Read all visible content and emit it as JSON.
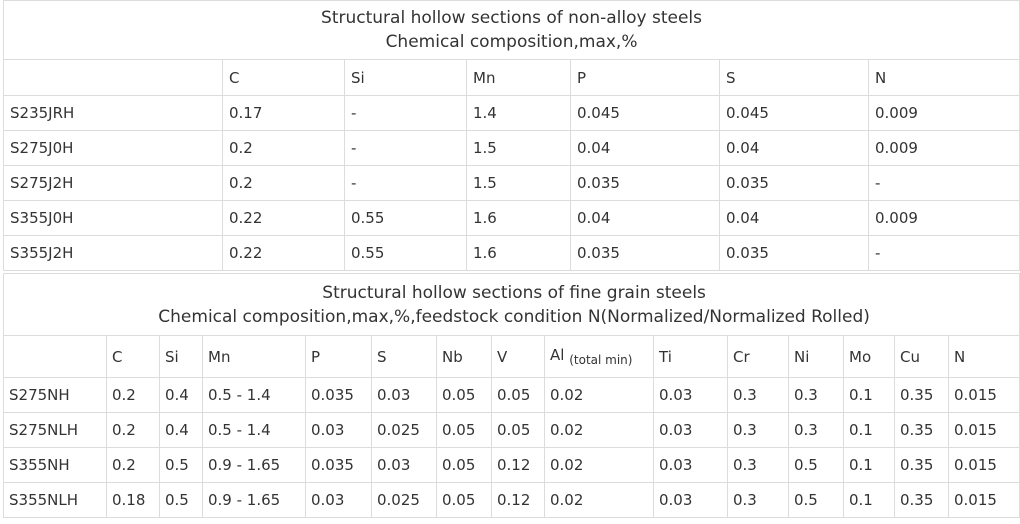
{
  "table1": {
    "title_line1": "Structural hollow sections of non-alloy steels",
    "title_line2": "Chemical composition,max,%",
    "headers": [
      "",
      "C",
      "Si",
      "Mn",
      "P",
      "S",
      "N"
    ],
    "rows": [
      [
        "S235JRH",
        "0.17",
        "-",
        "1.4",
        "0.045",
        "0.045",
        "0.009"
      ],
      [
        "S275J0H",
        "0.2",
        "-",
        "1.5",
        "0.04",
        "0.04",
        "0.009"
      ],
      [
        "S275J2H",
        "0.2",
        "-",
        "1.5",
        "0.035",
        "0.035",
        "-"
      ],
      [
        "S355J0H",
        "0.22",
        "0.55",
        "1.6",
        "0.04",
        "0.04",
        "0.009"
      ],
      [
        "S355J2H",
        "0.22",
        "0.55",
        "1.6",
        "0.035",
        "0.035",
        "-"
      ]
    ]
  },
  "table2": {
    "title_line1": "Structural hollow sections of fine grain steels",
    "title_line2": "Chemical composition,max,%,feedstock condition N(Normalized/Normalized Rolled)",
    "headers": [
      "",
      "C",
      "Si",
      "Mn",
      "P",
      "S",
      "Nb",
      "V",
      "Al",
      "Ti",
      "Cr",
      "Ni",
      "Mo",
      "Cu",
      "N"
    ],
    "al_subscript": "(total min)",
    "rows": [
      [
        "S275NH",
        "0.2",
        "0.4",
        "0.5 - 1.4",
        "0.035",
        "0.03",
        "0.05",
        "0.05",
        "0.02",
        "0.03",
        "0.3",
        "0.3",
        "0.1",
        "0.35",
        "0.015"
      ],
      [
        "S275NLH",
        "0.2",
        "0.4",
        "0.5 - 1.4",
        "0.03",
        "0.025",
        "0.05",
        "0.05",
        "0.02",
        "0.03",
        "0.3",
        "0.3",
        "0.1",
        "0.35",
        "0.015"
      ],
      [
        "S355NH",
        "0.2",
        "0.5",
        "0.9 - 1.65",
        "0.035",
        "0.03",
        "0.05",
        "0.12",
        "0.02",
        "0.03",
        "0.3",
        "0.5",
        "0.1",
        "0.35",
        "0.015"
      ],
      [
        "S355NLH",
        "0.18",
        "0.5",
        "0.9 - 1.65",
        "0.03",
        "0.025",
        "0.05",
        "0.12",
        "0.02",
        "0.03",
        "0.3",
        "0.5",
        "0.1",
        "0.35",
        "0.015"
      ]
    ]
  }
}
